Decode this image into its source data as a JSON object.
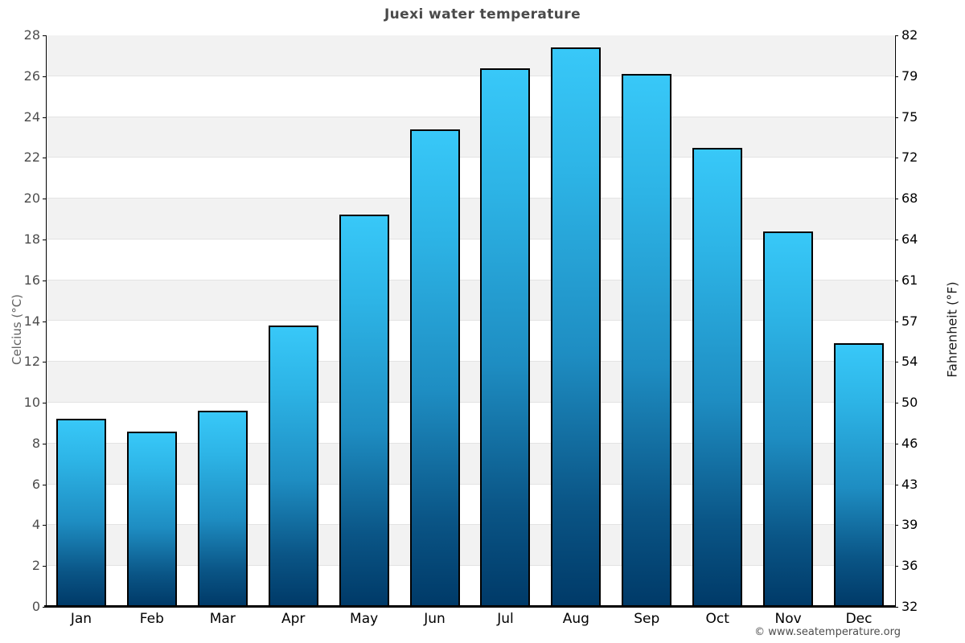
{
  "header": {
    "title": "Juexi water temperature"
  },
  "footer": {
    "credit": "© www.seatemperature.org"
  },
  "chart_data": {
    "type": "bar",
    "title": "Juexi water temperature",
    "categories": [
      "Jan",
      "Feb",
      "Mar",
      "Apr",
      "May",
      "Jun",
      "Jul",
      "Aug",
      "Sep",
      "Oct",
      "Nov",
      "Dec"
    ],
    "values": [
      9.2,
      8.6,
      9.6,
      13.8,
      19.2,
      23.4,
      26.4,
      27.4,
      26.1,
      22.5,
      18.4,
      12.9
    ],
    "unit": "°C",
    "ylabel_left": "Celcius (°C)",
    "ylabel_right": "Fahrenheit (°F)",
    "ylim": [
      0,
      28
    ],
    "y_left_ticks": [
      0,
      2,
      4,
      6,
      8,
      10,
      12,
      14,
      16,
      18,
      20,
      22,
      24,
      26,
      28
    ],
    "y_right_tick_labels": [
      "32",
      "36",
      "39",
      "43",
      "46",
      "50",
      "54",
      "57",
      "61",
      "64",
      "68",
      "72",
      "75",
      "79",
      "82"
    ],
    "legend": "none",
    "grid": "horizontal gridlines every 2°C with alternating shaded bands, gray band at top (28–26)",
    "colors": {
      "bar_gradient_top": "#38c8f8",
      "bar_gradient_mid": "#1e8dc2",
      "bar_gradient_bottom": "#003a68",
      "bar_border": "#000000",
      "band_gray": "#f2f2f2",
      "band_white": "#ffffff",
      "grid_line": "#e3e3e3",
      "axis_line": "#000000",
      "title_text": "#4a4a4a",
      "left_tick_text": "#4d4d4d",
      "right_tick_text": "#000000"
    }
  }
}
